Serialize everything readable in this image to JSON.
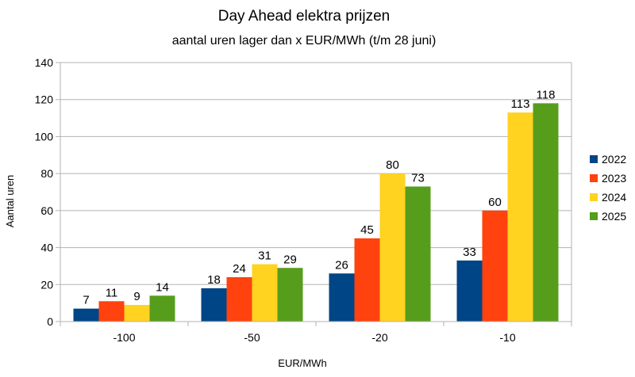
{
  "chart_data": {
    "type": "bar",
    "title": "Day Ahead elektra prijzen",
    "subtitle": "aantal uren lager dan x EUR/MWh (t/m 28 juni)",
    "xlabel": "EUR/MWh",
    "ylabel": "Aantal uren",
    "categories": [
      "-100",
      "-50",
      "-20",
      "-10"
    ],
    "ylim": [
      0,
      140
    ],
    "yticks": [
      "0",
      "20",
      "40",
      "60",
      "80",
      "100",
      "120",
      "140"
    ],
    "grid": true,
    "legend_position": "right",
    "series": [
      {
        "name": "2022",
        "color": "#004586",
        "values": [
          7,
          18,
          26,
          33
        ]
      },
      {
        "name": "2023",
        "color": "#ff420e",
        "values": [
          11,
          24,
          45,
          60
        ]
      },
      {
        "name": "2024",
        "color": "#ffd320",
        "values": [
          9,
          31,
          80,
          113
        ]
      },
      {
        "name": "2025",
        "color": "#579d1c",
        "values": [
          14,
          29,
          73,
          118
        ]
      }
    ]
  }
}
